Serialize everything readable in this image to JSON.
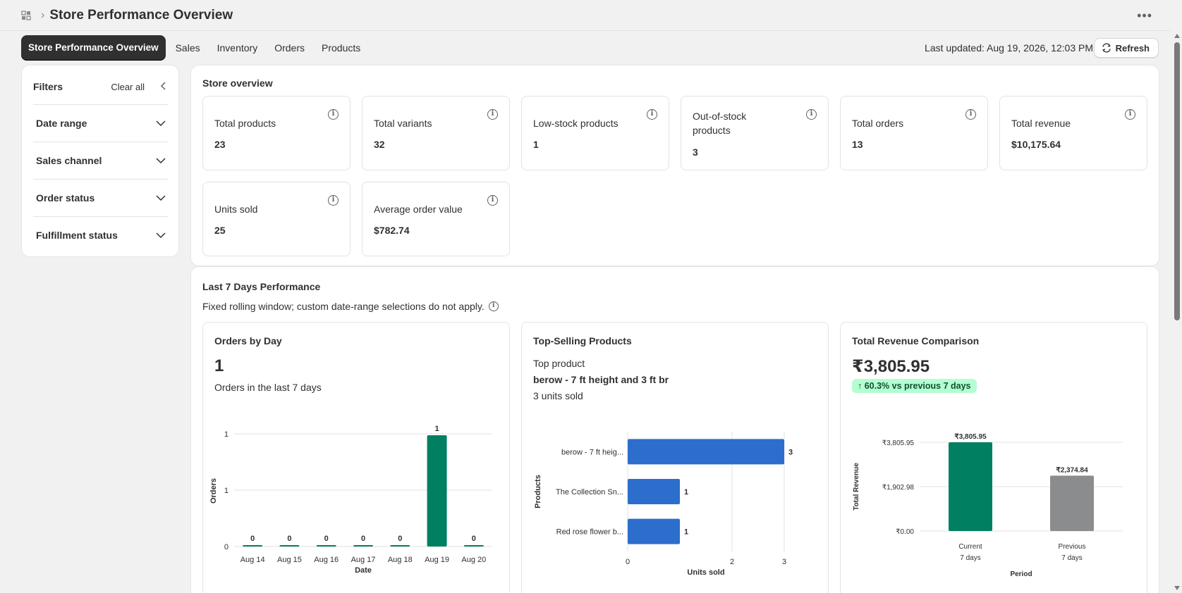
{
  "header": {
    "title": "Store Performance Overview",
    "more_icon": "more-horizontal-icon",
    "app_icon": "analytics-icon"
  },
  "tabs": [
    {
      "label": "Store Performance Overview",
      "active": true
    },
    {
      "label": "Sales"
    },
    {
      "label": "Inventory"
    },
    {
      "label": "Orders"
    },
    {
      "label": "Products"
    }
  ],
  "toolbar": {
    "last_updated": "Last updated: Aug 19, 2026, 12:03 PM",
    "refresh_label": "Refresh"
  },
  "filters": {
    "title": "Filters",
    "clear_all": "Clear all",
    "items": [
      {
        "label": "Date range"
      },
      {
        "label": "Sales channel"
      },
      {
        "label": "Order status"
      },
      {
        "label": "Fulfillment status"
      }
    ]
  },
  "overview": {
    "title": "Store overview",
    "metrics": [
      {
        "label": "Total products",
        "value": "23"
      },
      {
        "label": "Total variants",
        "value": "32"
      },
      {
        "label": "Low-stock products",
        "value": "1"
      },
      {
        "label": "Out-of-stock products",
        "value": "3"
      },
      {
        "label": "Total orders",
        "value": "13"
      },
      {
        "label": "Total revenue",
        "value": "$10,175.64"
      },
      {
        "label": "Units sold",
        "value": "25"
      },
      {
        "label": "Average order value",
        "value": "$782.74"
      }
    ]
  },
  "performance": {
    "title": "Last 7 Days Performance",
    "subtitle": "Fixed rolling window; custom date-range selections do not apply.",
    "orders_by_day": {
      "title": "Orders by Day",
      "value": "1",
      "caption": "Orders in the last 7 days"
    },
    "top_selling": {
      "title": "Top-Selling Products",
      "label": "Top product",
      "product": "berow - 7 ft height and 3 ft br",
      "units": "3 units sold"
    },
    "revenue": {
      "title": "Total Revenue Comparison",
      "value": "₹3,805.95",
      "badge": "↑ 60.3% vs previous 7 days"
    }
  },
  "colors": {
    "green": "#008060",
    "blue": "#2c6ecb",
    "gray": "#8a8c8e",
    "badge_bg": "#b4fed2"
  },
  "chart_data": [
    {
      "type": "bar",
      "categories": [
        "Aug 14",
        "Aug 15",
        "Aug 16",
        "Aug 17",
        "Aug 18",
        "Aug 19",
        "Aug 20"
      ],
      "values": [
        0,
        0,
        0,
        0,
        0,
        1,
        0
      ],
      "data_labels": [
        "0",
        "0",
        "0",
        "0",
        "0",
        "1",
        "0"
      ],
      "xlabel": "Date",
      "ylabel": "Orders",
      "y_ticks": [
        "0",
        "1",
        "1"
      ],
      "ylim": [
        0,
        1
      ]
    },
    {
      "type": "bar",
      "orientation": "horizontal",
      "categories": [
        "berow - 7 ft heig...",
        "The Collection Sn...",
        "Red rose flower b..."
      ],
      "values": [
        3,
        1,
        1
      ],
      "xlabel": "Units sold",
      "ylabel": "Products",
      "x_ticks": [
        "0",
        "2",
        "3"
      ],
      "xlim": [
        0,
        3
      ]
    },
    {
      "type": "bar",
      "categories": [
        "Current 7 days",
        "Previous 7 days"
      ],
      "category_lines": [
        [
          "Current",
          "7 days"
        ],
        [
          "Previous",
          "7 days"
        ]
      ],
      "values": [
        3805.95,
        2374.84
      ],
      "data_labels": [
        "₹3,805.95",
        "₹2,374.84"
      ],
      "xlabel": "Period",
      "ylabel": "Total Revenue",
      "y_ticks": [
        "₹0.00",
        "₹1,902.98",
        "₹3,805.95"
      ],
      "ylim": [
        0,
        3805.95
      ]
    }
  ]
}
